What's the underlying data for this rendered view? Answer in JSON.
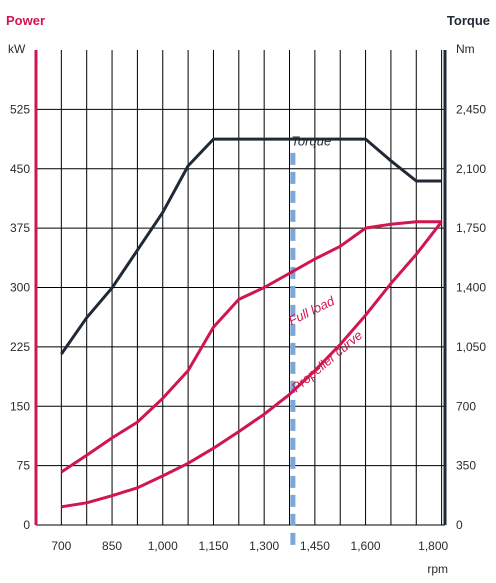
{
  "chart_data": {
    "type": "line",
    "title_left": "Power",
    "title_right": "Torque",
    "ylabel_left": "kW",
    "ylabel_right": "Nm",
    "xlabel": "rpm",
    "grid": true,
    "x_ticks": [
      700,
      775,
      850,
      925,
      1000,
      1075,
      1150,
      1225,
      1300,
      1375,
      1450,
      1525,
      1600,
      1675,
      1750,
      1825
    ],
    "x_tick_labels": [
      {
        "value": 700,
        "text": "700"
      },
      {
        "value": 850,
        "text": "850"
      },
      {
        "value": 1000,
        "text": "1,000"
      },
      {
        "value": 1150,
        "text": "1,150"
      },
      {
        "value": 1300,
        "text": "1,300"
      },
      {
        "value": 1450,
        "text": "1,450"
      },
      {
        "value": 1600,
        "text": "1,600"
      },
      {
        "value": 1800,
        "text": "1,800"
      }
    ],
    "y_left_ticks": [
      0,
      75,
      150,
      225,
      300,
      375,
      450,
      525
    ],
    "y_left_labels": [
      "0",
      "75",
      "150",
      "225",
      "300",
      "375",
      "450",
      "525"
    ],
    "y_right_labels": [
      "0",
      "350",
      "700",
      "1,050",
      "1,400",
      "1,750",
      "2,100",
      "2,450"
    ],
    "ylim_left": [
      0,
      600
    ],
    "xlim": [
      625,
      1835
    ],
    "series": [
      {
        "name": "Torque",
        "axis": "right",
        "color": "#1f2a36",
        "x": [
          700,
          775,
          850,
          925,
          1000,
          1075,
          1150,
          1225,
          1300,
          1375,
          1450,
          1525,
          1600,
          1675,
          1750,
          1825
        ],
        "y": [
          1008,
          1222,
          1398,
          1620,
          1843,
          2117,
          2275,
          2275,
          2275,
          2275,
          2275,
          2275,
          2275,
          2147,
          2028,
          2028
        ]
      },
      {
        "name": "Full load",
        "axis": "left",
        "color": "#d0164d",
        "x": [
          700,
          775,
          850,
          925,
          1000,
          1075,
          1150,
          1225,
          1300,
          1375,
          1450,
          1525,
          1600,
          1675,
          1750,
          1825
        ],
        "y": [
          67,
          88,
          110,
          130,
          160,
          195,
          250,
          285,
          300,
          318,
          336,
          352,
          375,
          380,
          383,
          383
        ]
      },
      {
        "name": "Propeller curve",
        "axis": "left",
        "color": "#d0164d",
        "x": [
          700,
          775,
          850,
          925,
          1000,
          1075,
          1150,
          1225,
          1300,
          1375,
          1450,
          1525,
          1600,
          1675,
          1750,
          1825
        ],
        "y": [
          23,
          28,
          37,
          47,
          62,
          78,
          97,
          118,
          140,
          165,
          195,
          228,
          265,
          305,
          342,
          383
        ]
      }
    ],
    "marker_line": {
      "x": 1385,
      "color": "#7aa6d8"
    }
  }
}
